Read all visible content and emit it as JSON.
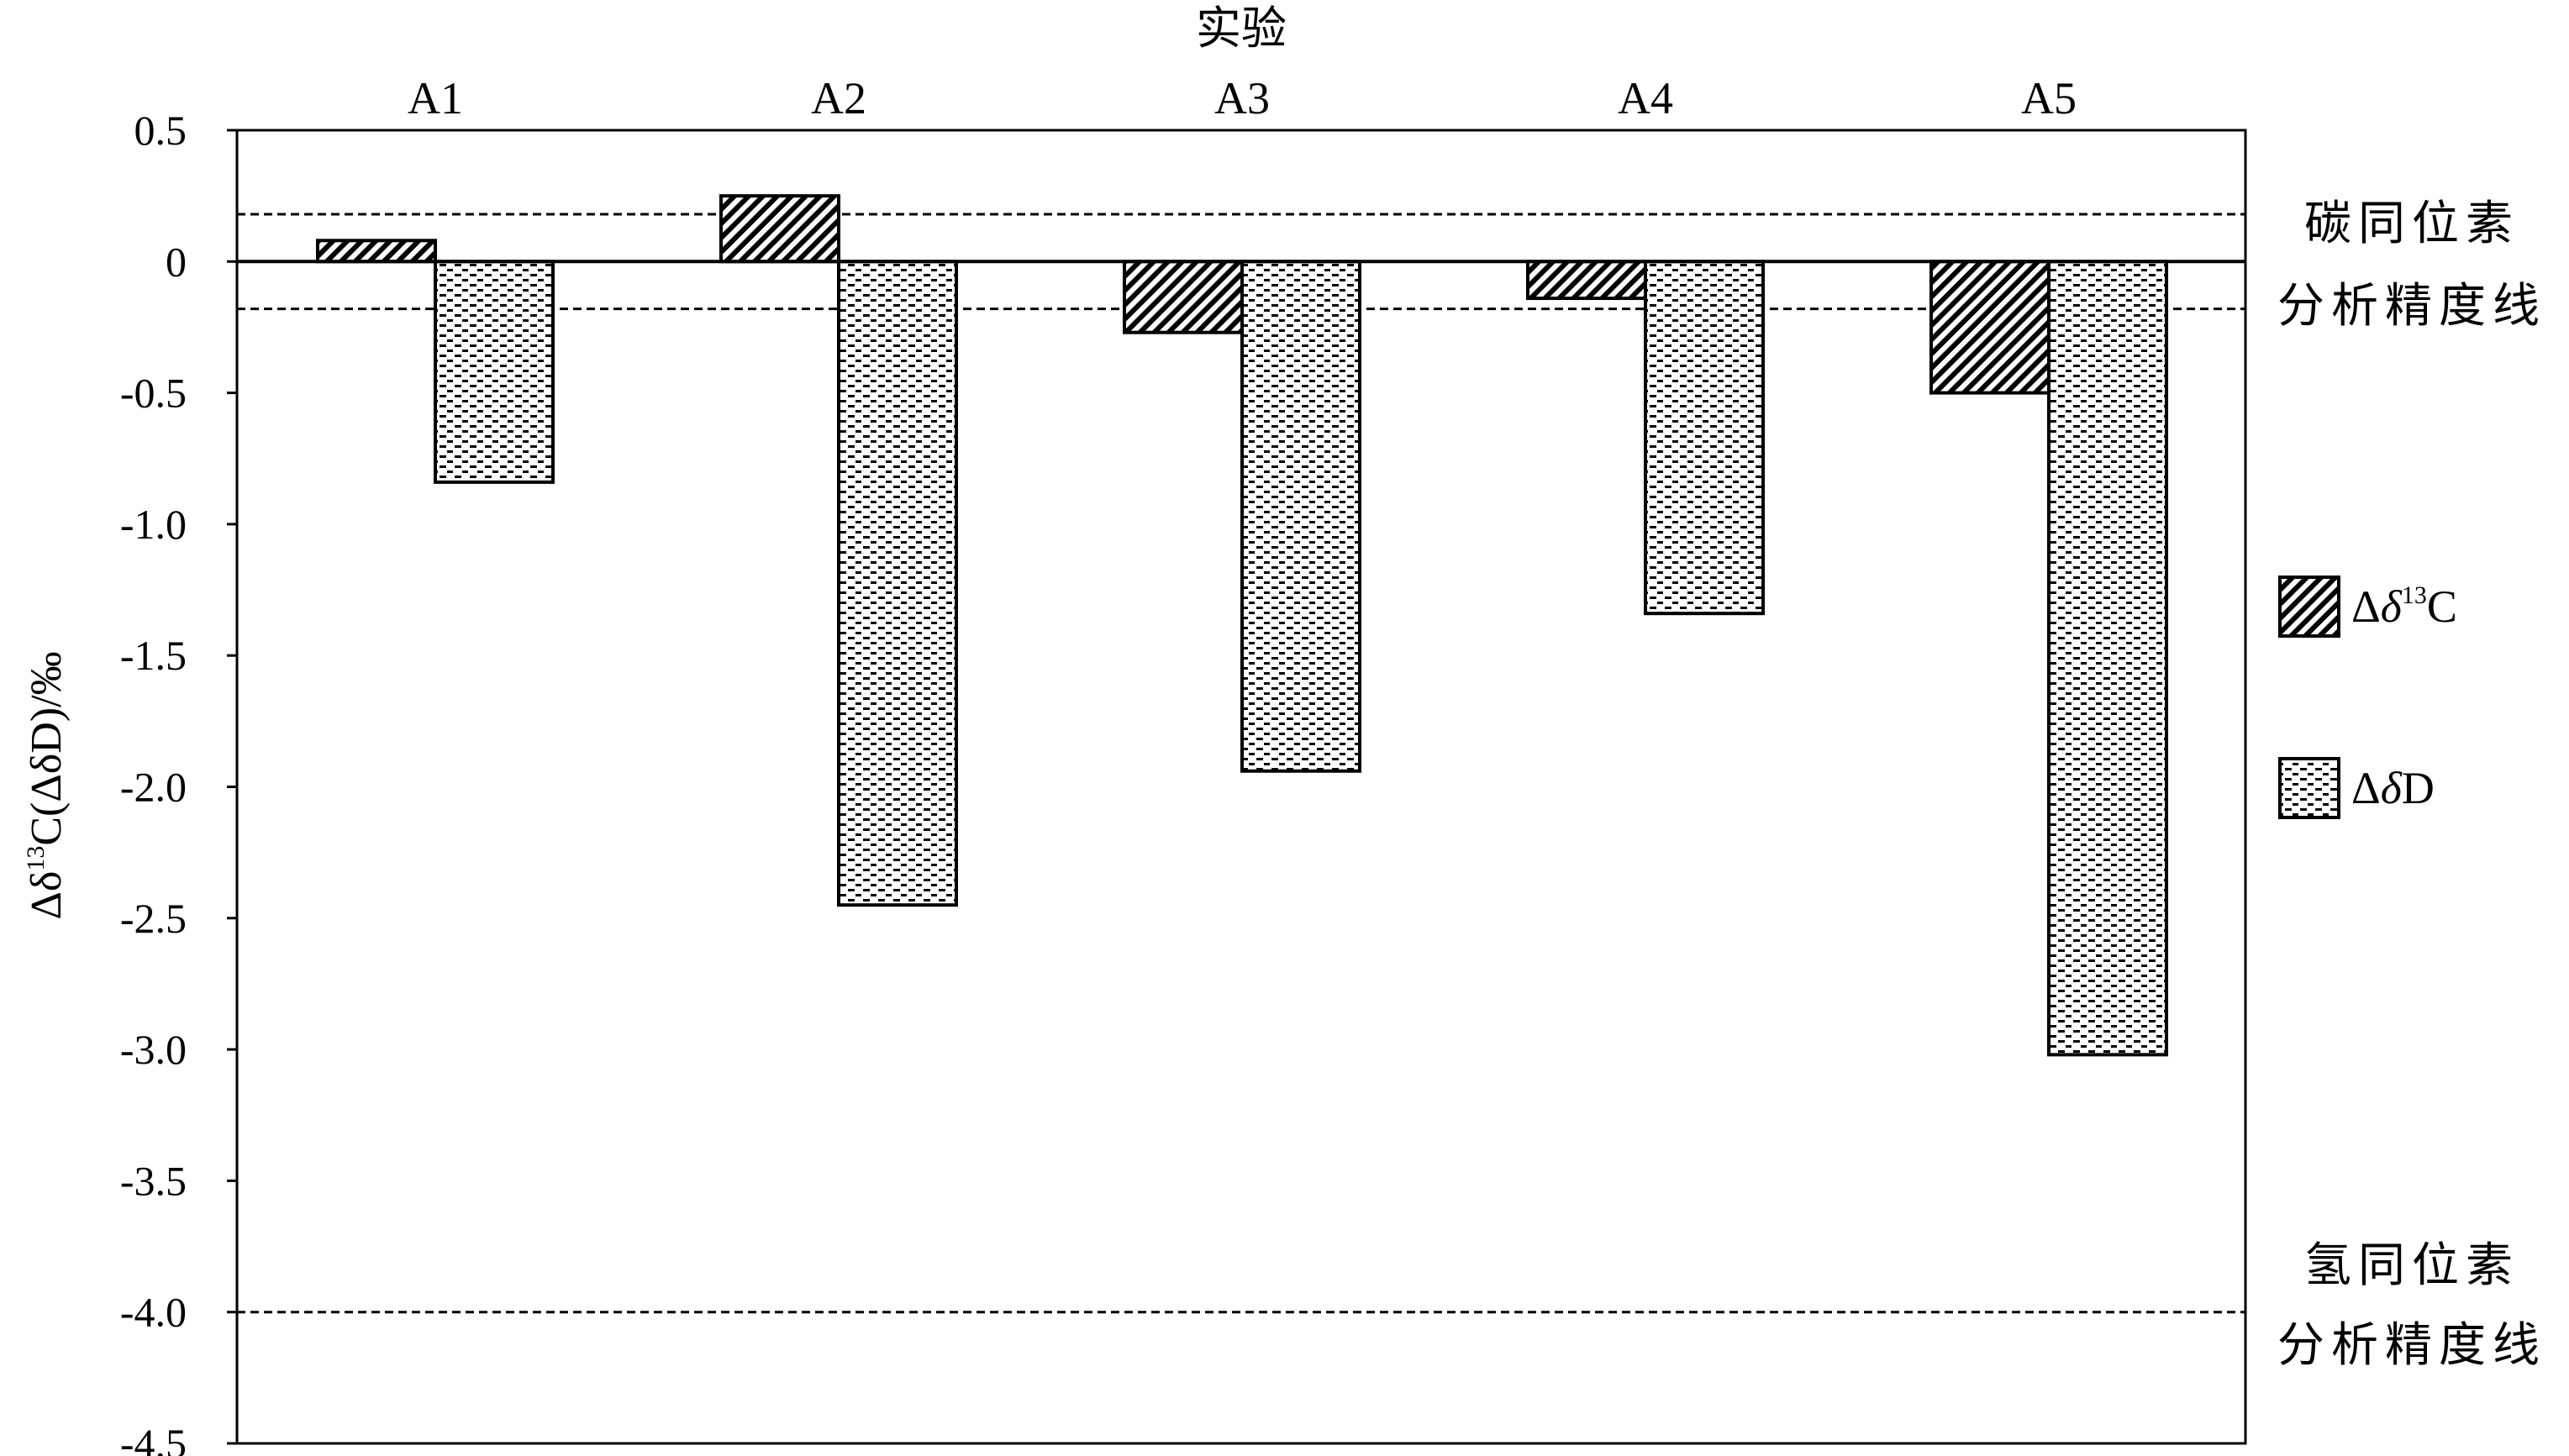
{
  "chart_data": {
    "type": "bar",
    "xlabel": "实验",
    "ylabel": "Δδ¹³C(ΔδD)/‰",
    "ylim": [
      -4.5,
      0.5
    ],
    "yticks": [
      "0.5",
      "0",
      "-0.5",
      "-1.0",
      "-1.5",
      "-2.0",
      "-2.5",
      "-3.0",
      "-3.5",
      "-4.0",
      "-4.5"
    ],
    "categories": [
      "A1",
      "A2",
      "A3",
      "A4",
      "A5"
    ],
    "series": [
      {
        "name": "Δδ¹³C",
        "pattern": "diagonal-hatch",
        "values": [
          0.08,
          0.25,
          -0.27,
          -0.14,
          -0.5
        ]
      },
      {
        "name": "ΔδD",
        "pattern": "dashed-dots",
        "values": [
          -0.84,
          -2.45,
          -1.94,
          -1.34,
          -3.02
        ]
      }
    ],
    "reference_lines": [
      {
        "value": 0.18,
        "style": "dashed",
        "group": "carbon"
      },
      {
        "value": -0.18,
        "style": "dashed",
        "group": "carbon"
      },
      {
        "value": -4.0,
        "style": "dashed",
        "group": "hydrogen"
      }
    ],
    "annotations": {
      "carbon_precision": [
        "碳同位素",
        "分析精度线"
      ],
      "hydrogen_precision": [
        "氢同位素",
        "分析精度线"
      ]
    },
    "legend_placement": "right",
    "grid": false
  }
}
